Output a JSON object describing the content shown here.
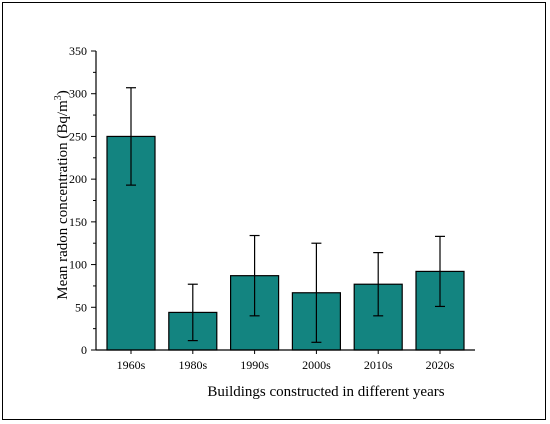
{
  "chart_data": {
    "type": "bar",
    "title": "",
    "xlabel": "Buildings constructed in different years",
    "ylabel_main": "Mean radon concentration (Bq/m",
    "ylabel_sup": "3",
    "ylabel_tail": ")",
    "categories": [
      "1960s",
      "1980s",
      "1990s",
      "2000s",
      "2010s",
      "2020s"
    ],
    "values": [
      250,
      44,
      87,
      67,
      77,
      92
    ],
    "error_low": [
      193,
      11,
      40,
      9,
      40,
      51
    ],
    "error_high": [
      307,
      77,
      134,
      125,
      114,
      133
    ],
    "yticks": [
      "0",
      "50",
      "100",
      "150",
      "200",
      "250",
      "300",
      "350"
    ],
    "ylim": [
      0,
      350
    ],
    "grid": false,
    "bar_color": "#138480",
    "edge_color": "#000000"
  }
}
